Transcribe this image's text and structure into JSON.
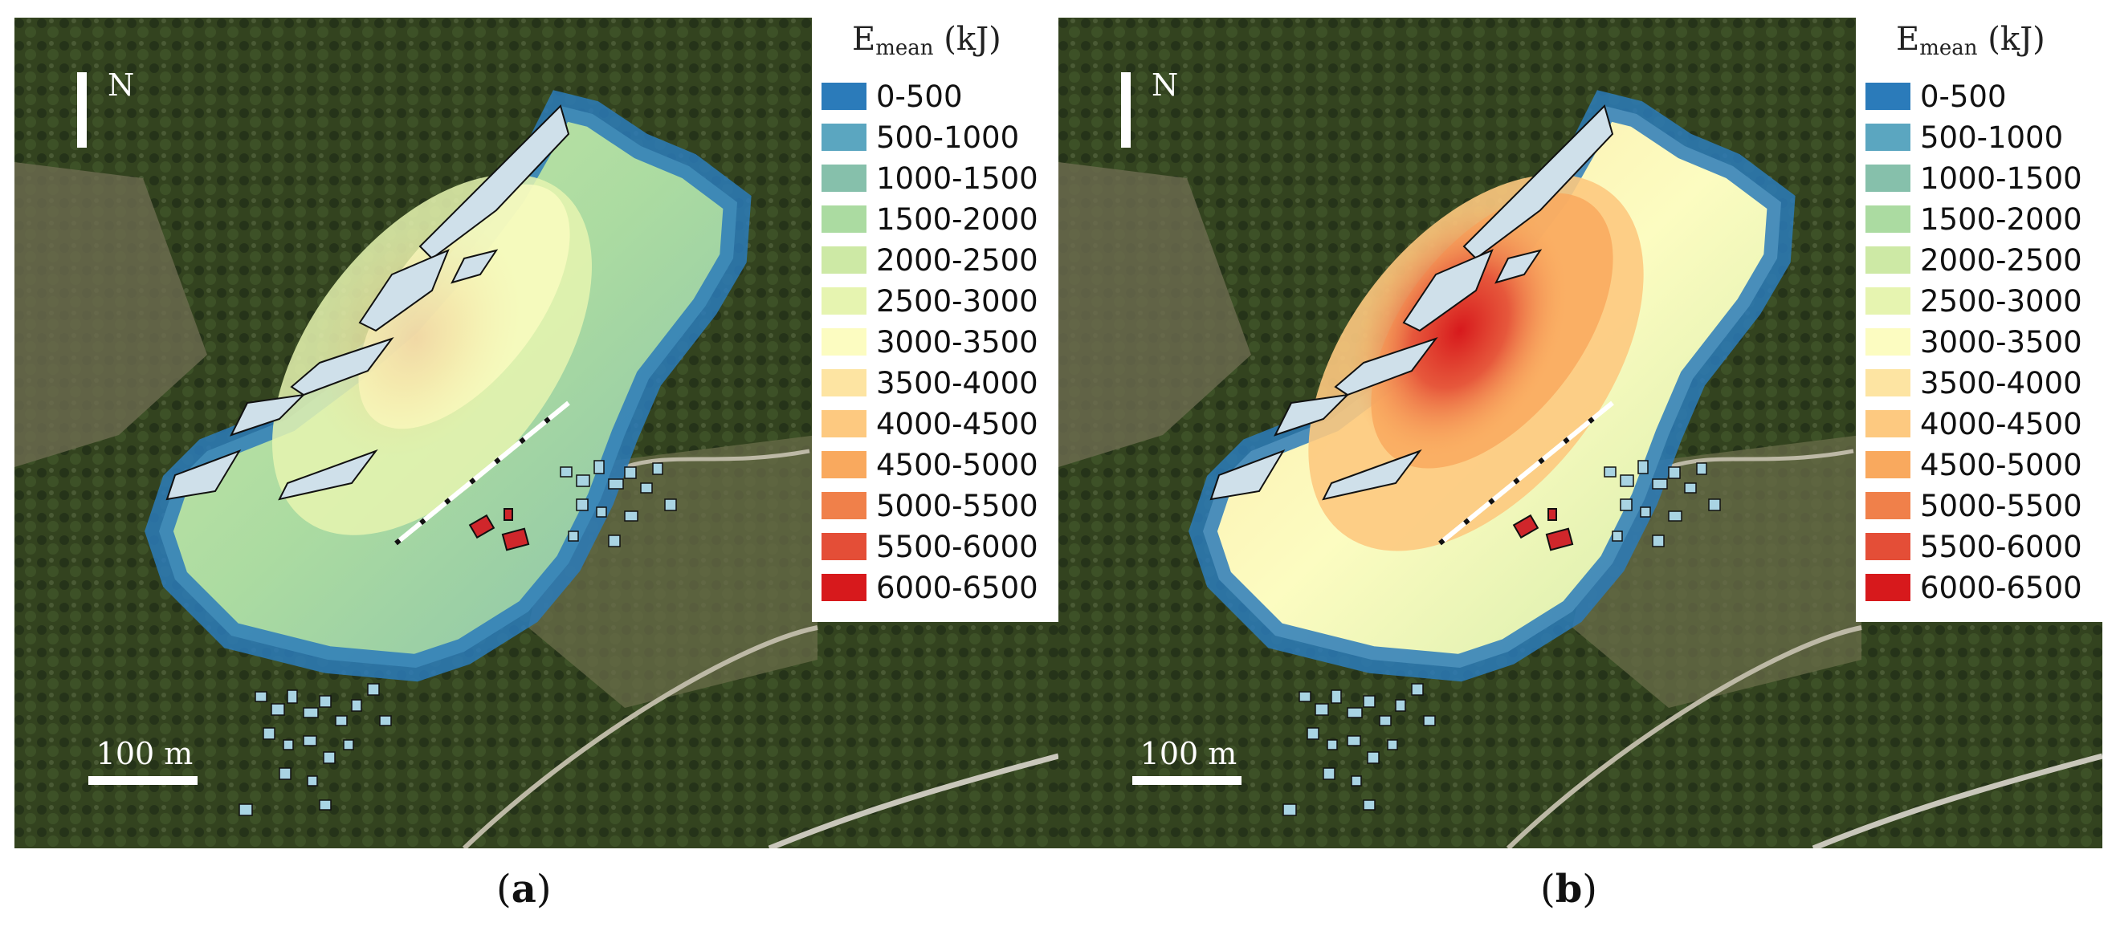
{
  "panels": [
    {
      "id": "a",
      "caption": "a",
      "north_label": "N",
      "scale_label": "100 m",
      "legend_title_main": "E",
      "legend_title_sub": "mean",
      "legend_title_unit": "(kJ)",
      "max_class_index": 4,
      "hotspot_intensity": 0.15
    },
    {
      "id": "b",
      "caption": "b",
      "north_label": "N",
      "scale_label": "100 m",
      "legend_title_main": "E",
      "legend_title_sub": "mean",
      "legend_title_unit": "(kJ)",
      "max_class_index": 12,
      "hotspot_intensity": 1.0
    }
  ],
  "legend": [
    {
      "label": "0-500",
      "color": "#2b7bba"
    },
    {
      "label": "500-1000",
      "color": "#5ba6c0"
    },
    {
      "label": "1000-1500",
      "color": "#86c0ab"
    },
    {
      "label": "1500-2000",
      "color": "#abdba1"
    },
    {
      "label": "2000-2500",
      "color": "#cde9a5"
    },
    {
      "label": "2500-3000",
      "color": "#e6f4b0"
    },
    {
      "label": "3000-3500",
      "color": "#fcfcc1"
    },
    {
      "label": "3500-4000",
      "color": "#fde4a2"
    },
    {
      "label": "4000-4500",
      "color": "#fdc980"
    },
    {
      "label": "4500-5000",
      "color": "#f9a95e"
    },
    {
      "label": "5000-5500",
      "color": "#f0804a"
    },
    {
      "label": "5500-6000",
      "color": "#e44e37"
    },
    {
      "label": "6000-6500",
      "color": "#d7191c"
    }
  ],
  "colors": {
    "forest": "#2f3d22",
    "open_slope": "#6b6a4c",
    "barrier_fill": "#d0262b",
    "building_fill": "#a9d4e3",
    "scree_fill": "#cfe0ea"
  }
}
